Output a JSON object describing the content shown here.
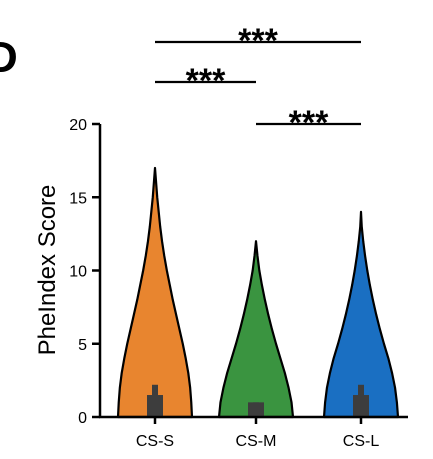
{
  "panel_letter": "D",
  "chart_data": {
    "type": "violin",
    "title": "",
    "xlabel": "",
    "ylabel": "PheIndex Score",
    "ylim": [
      0,
      20
    ],
    "yticks": [
      0,
      5,
      10,
      15,
      20
    ],
    "grid": false,
    "categories": [
      "CS-S",
      "CS-M",
      "CS-L"
    ],
    "series": [
      {
        "category": "CS-S",
        "color": "#E8852F",
        "max": 17,
        "median": 0.5,
        "q1": 0,
        "q3": 1.5,
        "whisker_high": 2.2,
        "density": [
          [
            0,
            1.0
          ],
          [
            1,
            0.98
          ],
          [
            2,
            0.95
          ],
          [
            3,
            0.9
          ],
          [
            4,
            0.83
          ],
          [
            5,
            0.75
          ],
          [
            6,
            0.66
          ],
          [
            7,
            0.57
          ],
          [
            8,
            0.48
          ],
          [
            9,
            0.4
          ],
          [
            10,
            0.32
          ],
          [
            11,
            0.25
          ],
          [
            12,
            0.19
          ],
          [
            13,
            0.14
          ],
          [
            14,
            0.1
          ],
          [
            15,
            0.06
          ],
          [
            16,
            0.03
          ],
          [
            17,
            0.0
          ]
        ]
      },
      {
        "category": "CS-M",
        "color": "#3A9440",
        "max": 12,
        "median": 0.5,
        "q1": 0,
        "q3": 1.0,
        "whisker_high": 1.0,
        "density": [
          [
            0,
            1.0
          ],
          [
            1,
            0.96
          ],
          [
            2,
            0.88
          ],
          [
            3,
            0.78
          ],
          [
            4,
            0.66
          ],
          [
            5,
            0.54
          ],
          [
            6,
            0.43
          ],
          [
            7,
            0.33
          ],
          [
            8,
            0.24
          ],
          [
            9,
            0.16
          ],
          [
            10,
            0.09
          ],
          [
            11,
            0.04
          ],
          [
            12,
            0.0
          ]
        ]
      },
      {
        "category": "CS-L",
        "color": "#1A6FC2",
        "max": 14,
        "median": 0.5,
        "q1": 0,
        "q3": 1.5,
        "whisker_high": 2.2,
        "density": [
          [
            0,
            1.0
          ],
          [
            1,
            0.97
          ],
          [
            2,
            0.92
          ],
          [
            3,
            0.84
          ],
          [
            4,
            0.74
          ],
          [
            5,
            0.62
          ],
          [
            6,
            0.51
          ],
          [
            7,
            0.41
          ],
          [
            8,
            0.32
          ],
          [
            9,
            0.24
          ],
          [
            10,
            0.17
          ],
          [
            11,
            0.11
          ],
          [
            12,
            0.06
          ],
          [
            13,
            0.02
          ],
          [
            14,
            0.0
          ]
        ]
      }
    ],
    "significance": [
      {
        "from": "CS-S",
        "to": "CS-L",
        "label": "***",
        "level": 1
      },
      {
        "from": "CS-S",
        "to": "CS-M",
        "label": "***",
        "level": 2
      },
      {
        "from": "CS-M",
        "to": "CS-L",
        "label": "***",
        "level": 3
      }
    ]
  }
}
